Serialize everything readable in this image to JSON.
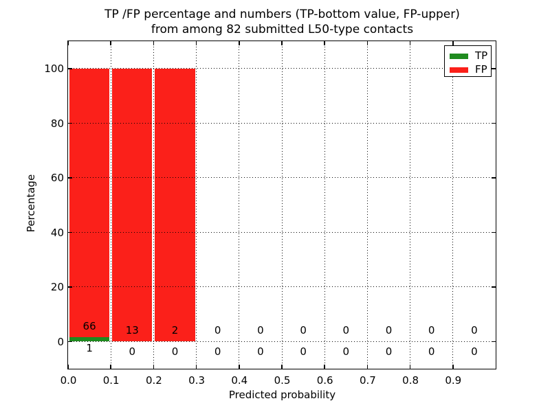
{
  "title": {
    "line1": "TP /FP percentage and numbers (TP-bottom value, FP-upper)",
    "line2": "from among 82 submitted L50-type contacts"
  },
  "legend": {
    "items": [
      {
        "label": "TP",
        "color": "#1f8b1f"
      },
      {
        "label": "FP",
        "color": "#fb201a"
      }
    ],
    "position": "upper right"
  },
  "chart_data": {
    "type": "bar",
    "stacked": true,
    "title": "TP /FP percentage and numbers (TP-bottom value, FP-upper)\nfrom among 82 submitted L50-type contacts",
    "xlabel": "Predicted probability",
    "ylabel": "Percentage",
    "total_contacts": 82,
    "bin_edges": [
      0.0,
      0.1,
      0.2,
      0.3,
      0.4,
      0.5,
      0.6,
      0.7,
      0.8,
      0.9,
      1.0
    ],
    "x_tick_labels": [
      "0.0",
      "0.1",
      "0.2",
      "0.3",
      "0.4",
      "0.5",
      "0.6",
      "0.7",
      "0.8",
      "0.9"
    ],
    "y_tick_values": [
      0,
      20,
      40,
      60,
      80,
      100
    ],
    "xlim": [
      0.0,
      1.0
    ],
    "ylim": [
      -10,
      110
    ],
    "grid": {
      "style": "dotted",
      "color": "#000000",
      "above_bars": true
    },
    "series": [
      {
        "name": "TP",
        "color": "#1f8b1f",
        "counts": [
          1,
          0,
          0,
          0,
          0,
          0,
          0,
          0,
          0,
          0
        ],
        "percent": [
          1.49,
          0,
          0,
          0,
          0,
          0,
          0,
          0,
          0,
          0
        ]
      },
      {
        "name": "FP",
        "color": "#fb201a",
        "counts": [
          66,
          13,
          2,
          0,
          0,
          0,
          0,
          0,
          0,
          0
        ],
        "percent": [
          98.51,
          100,
          100,
          0,
          0,
          0,
          0,
          0,
          0,
          0
        ]
      }
    ]
  }
}
